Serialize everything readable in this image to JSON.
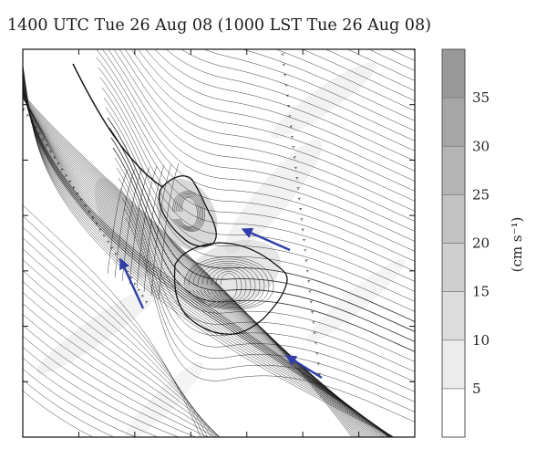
{
  "chart_data": {
    "type": "streamline",
    "title": "1400 UTC Tue 26 Aug 08 (1000 LST Tue 26 Aug 08)",
    "xlabel": "",
    "ylabel": "",
    "colorbar": {
      "unit_label": "(cm s⁻¹)",
      "range": [
        0,
        40
      ],
      "ticks": [
        5,
        10,
        15,
        20,
        25,
        30,
        35
      ],
      "colors": [
        "#ffffff",
        "#ececec",
        "#dcdcdc",
        "#cfcfcf",
        "#c2c2c2",
        "#b4b4b4",
        "#a6a6a6",
        "#989898"
      ]
    },
    "flow_arrows": [
      {
        "name": "left-arrow",
        "direction": "north-north-west"
      },
      {
        "name": "center-arrow",
        "direction": "west-north-west"
      },
      {
        "name": "lower-arrow",
        "direction": "north-west"
      }
    ],
    "arrow_color": "#2f3ea8",
    "stream_color": "#1a1a1a"
  }
}
